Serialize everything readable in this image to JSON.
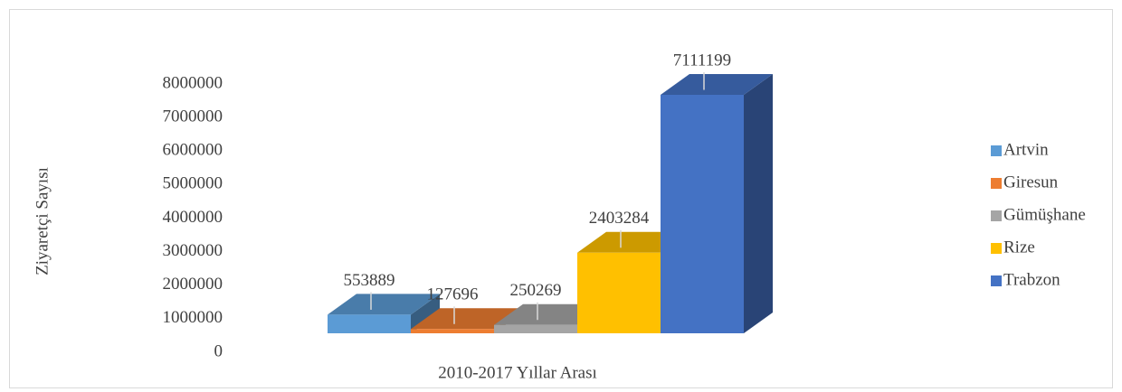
{
  "chart_data": {
    "type": "bar3d",
    "categories": [
      "2010-2017 Yıllar Arası"
    ],
    "y_label": "Ziyaretçi Sayısı",
    "series": [
      {
        "name": "Artvin",
        "color": "#5b9bd5",
        "values": [
          553889
        ]
      },
      {
        "name": "Giresun",
        "color": "#ed7d31",
        "values": [
          127696
        ]
      },
      {
        "name": "Gümüşhane",
        "color": "#a5a5a5",
        "values": [
          250269
        ]
      },
      {
        "name": "Rize",
        "color": "#ffc000",
        "values": [
          2403284
        ]
      },
      {
        "name": "Trabzon",
        "color": "#4472c4",
        "values": [
          7111199
        ]
      }
    ],
    "ylim": [
      0,
      8000000
    ],
    "yticks": [
      0,
      1000000,
      2000000,
      3000000,
      4000000,
      5000000,
      6000000,
      7000000,
      8000000
    ],
    "legend": "right"
  }
}
